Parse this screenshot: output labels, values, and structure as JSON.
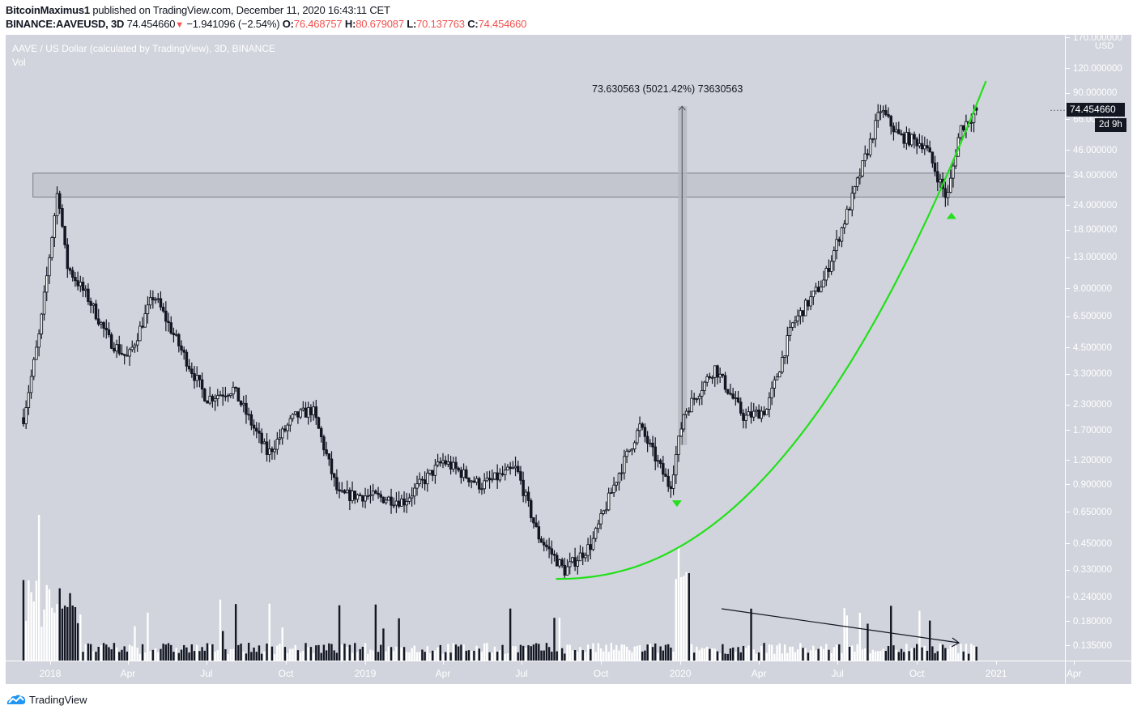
{
  "header": {
    "author": "BitcoinMaximus1",
    "published_text": "published on TradingView.com, December 11, 2020 16:43:11 CET",
    "symbol": "BINANCE:AAVEUSD, 3D",
    "last_price": "74.454660",
    "change_arrow": "▼",
    "change": "−1.941096 (−2.54%)",
    "open_label": "O:",
    "open": "76.468757",
    "high_label": "H:",
    "high": "80.679087",
    "low_label": "L:",
    "low": "70.137763",
    "close_label": "C:",
    "close": "74.454660"
  },
  "legend": {
    "title": "AAVE / US Dollar (calculated by TradingView), 3D, BINANCE",
    "volume": "Vol"
  },
  "yaxis": {
    "unit": "USD",
    "top_partial": "170.000000",
    "current_price_label": "74.454660",
    "countdown_label": "2d 9h"
  },
  "measure": {
    "label": "73.630563 (5021.42%) 73630563"
  },
  "footer": {
    "brand": "TradingView"
  },
  "colors": {
    "background": "#d1d4dc",
    "up_candle": "#ffffff",
    "down_candle": "#131722",
    "support_curve": "#22e01a",
    "zone_fill": "#c3c6ce",
    "zone_border": "#7b7e86",
    "accent_red": "#ef5350",
    "brand_blue": "#2196f3"
  },
  "chart_data": {
    "type": "candlestick",
    "title": "AAVE / US Dollar (calculated by TradingView), 3D, BINANCE",
    "xlabel": "",
    "ylabel": "USD",
    "scale": "log",
    "ylim": [
      0.12,
      170
    ],
    "y_ticks": [
      "120.000000",
      "90.000000",
      "66.000000",
      "46.000000",
      "34.000000",
      "24.000000",
      "18.000000",
      "13.000000",
      "9.000000",
      "6.500000",
      "4.500000",
      "3.300000",
      "2.300000",
      "1.700000",
      "1.200000",
      "0.900000",
      "0.650000",
      "0.450000",
      "0.330000",
      "0.240000",
      "0.180000",
      "0.135000"
    ],
    "x_ticks": [
      "2018",
      "Apr",
      "Jul",
      "Oct",
      "2019",
      "Apr",
      "Jul",
      "Oct",
      "2020",
      "Apr",
      "Jul",
      "Oct",
      "2021",
      "Apr"
    ],
    "price_path": [
      {
        "date": "2017-12",
        "price": 2.0
      },
      {
        "date": "2017-12-20",
        "price": 5.5
      },
      {
        "date": "2018-01-10",
        "price": 30.0
      },
      {
        "date": "2018-01-20",
        "price": 12.0
      },
      {
        "date": "2018-02-15",
        "price": 8.0
      },
      {
        "date": "2018-03-10",
        "price": 5.0
      },
      {
        "date": "2018-04-01",
        "price": 4.0
      },
      {
        "date": "2018-05-01",
        "price": 8.5
      },
      {
        "date": "2018-06-01",
        "price": 4.5
      },
      {
        "date": "2018-07-01",
        "price": 2.5
      },
      {
        "date": "2018-08-01",
        "price": 2.8
      },
      {
        "date": "2018-09-10",
        "price": 1.3
      },
      {
        "date": "2018-10-10",
        "price": 2.0
      },
      {
        "date": "2018-11-01",
        "price": 2.2
      },
      {
        "date": "2018-12-01",
        "price": 0.8
      },
      {
        "date": "2019-01-01",
        "price": 0.8
      },
      {
        "date": "2019-02-15",
        "price": 0.75
      },
      {
        "date": "2019-04-01",
        "price": 1.2
      },
      {
        "date": "2019-05-15",
        "price": 0.9
      },
      {
        "date": "2019-06-25",
        "price": 1.1
      },
      {
        "date": "2019-07-20",
        "price": 0.5
      },
      {
        "date": "2019-08-20",
        "price": 0.33
      },
      {
        "date": "2019-09-20",
        "price": 0.45
      },
      {
        "date": "2019-10-20",
        "price": 1.0
      },
      {
        "date": "2019-11-15",
        "price": 1.8
      },
      {
        "date": "2019-12-20",
        "price": 0.88
      },
      {
        "date": "2020-01-05",
        "price": 2.1
      },
      {
        "date": "2020-02-10",
        "price": 3.6
      },
      {
        "date": "2020-03-15",
        "price": 2.0
      },
      {
        "date": "2020-04-10",
        "price": 2.2
      },
      {
        "date": "2020-05-10",
        "price": 6.0
      },
      {
        "date": "2020-06-15",
        "price": 10.0
      },
      {
        "date": "2020-07-20",
        "price": 28.0
      },
      {
        "date": "2020-08-20",
        "price": 75.0
      },
      {
        "date": "2020-09-10",
        "price": 55.0
      },
      {
        "date": "2020-10-10",
        "price": 50.0
      },
      {
        "date": "2020-11-05",
        "price": 26.0
      },
      {
        "date": "2020-11-20",
        "price": 60.0
      },
      {
        "date": "2020-12-11",
        "price": 74.45
      }
    ],
    "annotations": [
      {
        "type": "horizontal_zone",
        "from": 27,
        "to": 35,
        "label": "resistance/support zone"
      },
      {
        "type": "price_range",
        "from": 1.44,
        "to": 75.07,
        "label": "73.630563 (5021.42%) 73630563"
      },
      {
        "type": "parabolic_support_curve",
        "color": "#22e01a",
        "start": {
          "date": "2019-08-10",
          "price": 0.3
        },
        "end": {
          "date": "2020-12-20",
          "price": 105
        }
      },
      {
        "type": "marker_down",
        "date": "2019-12-28",
        "price": 0.7,
        "color": "#22e01a"
      },
      {
        "type": "marker_up",
        "date": "2020-11-10",
        "price": 21.5,
        "color": "#22e01a"
      },
      {
        "type": "volume_trend_arrow",
        "direction": "decreasing",
        "from": "2020-03",
        "to": "2020-12"
      }
    ],
    "volume": "bars, white=up, dark=down; major spikes Dec-2017/Jan-2018 and Jan-2020"
  }
}
